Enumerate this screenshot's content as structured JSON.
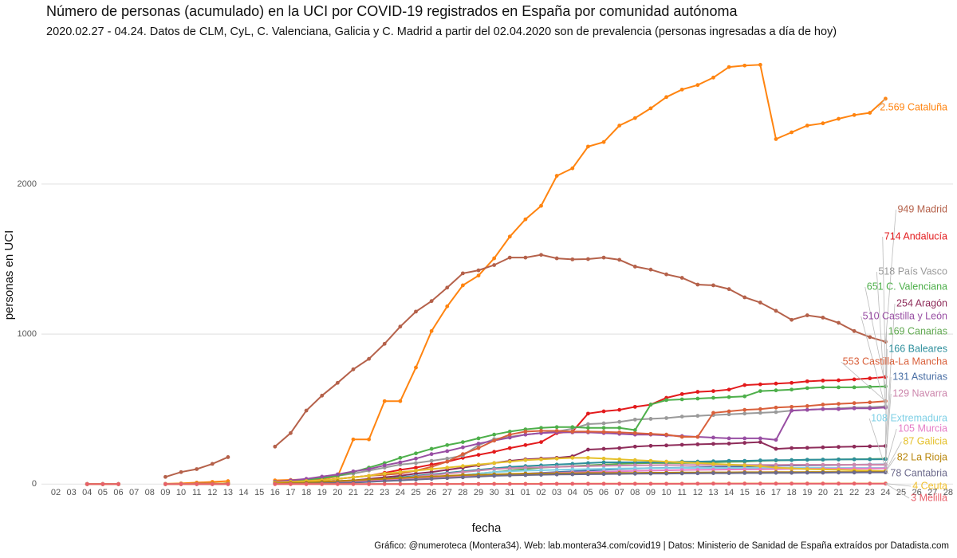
{
  "chart_data": {
    "type": "line",
    "title": "Número de personas (acumulado) en la UCI por COVID-19 registrados en España por comunidad autónoma",
    "subtitle": "2020.02.27 - 04.24. Datos de CLM, CyL, C. Valenciana, Galicia y C. Madrid a partir del 02.04.2020 son de prevalencia (personas ingresadas a día de hoy)",
    "x_label": "fecha",
    "y_label": "personas en UCI",
    "caption": "Gráfico: @numeroteca (Montera34). Web: lab.montera34.com/covid19 | Datos: Ministerio de Sanidad de España extraídos por Datadista.com",
    "categories": [
      "02",
      "03",
      "04",
      "05",
      "06",
      "07",
      "08",
      "09",
      "10",
      "11",
      "12",
      "13",
      "14",
      "15",
      "16",
      "17",
      "18",
      "19",
      "20",
      "21",
      "22",
      "23",
      "24",
      "25",
      "26",
      "27",
      "28",
      "29",
      "30",
      "31",
      "01",
      "02",
      "03",
      "04",
      "05",
      "06",
      "07",
      "08",
      "09",
      "10",
      "11",
      "12",
      "13",
      "14",
      "15",
      "16",
      "17",
      "18",
      "19",
      "20",
      "21",
      "22",
      "23",
      "24",
      "25",
      "26",
      "27",
      "28"
    ],
    "ylim": [
      -25,
      2855
    ],
    "yticks": [
      0,
      1000,
      2000
    ],
    "grid": true,
    "series": [
      {
        "name": "2.569 Cataluña",
        "color": "#ff8410",
        "values": [
          null,
          null,
          0,
          0,
          0,
          null,
          null,
          2,
          5,
          10,
          15,
          20,
          null,
          null,
          25,
          28,
          30,
          35,
          50,
          298,
          298,
          553,
          553,
          777,
          1020,
          1185,
          1325,
          1390,
          1505,
          1650,
          1765,
          1855,
          2055,
          2105,
          2250,
          2280,
          2390,
          2440,
          2505,
          2580,
          2630,
          2660,
          2710,
          2780,
          2790,
          2795,
          2300,
          2345,
          2390,
          2405,
          2435,
          2460,
          2475,
          2569,
          null,
          null,
          null,
          null
        ]
      },
      {
        "name": "949 Madrid",
        "color": "#b5614a",
        "values": [
          null,
          null,
          0,
          0,
          0,
          null,
          null,
          48,
          80,
          100,
          135,
          180,
          null,
          null,
          250,
          340,
          490,
          590,
          675,
          765,
          835,
          935,
          1050,
          1150,
          1220,
          1310,
          1405,
          1425,
          1460,
          1510,
          1510,
          1528,
          1505,
          1498,
          1500,
          1510,
          1495,
          1450,
          1430,
          1398,
          1375,
          1330,
          1325,
          1300,
          1245,
          1210,
          1155,
          1095,
          1125,
          1110,
          1075,
          1020,
          980,
          949,
          null,
          null,
          null,
          null
        ]
      },
      {
        "name": "714 Andalucía",
        "color": "#e31a1c",
        "values": [
          null,
          null,
          0,
          0,
          0,
          null,
          null,
          0,
          1,
          2,
          3,
          5,
          null,
          null,
          10,
          15,
          20,
          25,
          35,
          45,
          55,
          75,
          95,
          110,
          130,
          150,
          175,
          195,
          215,
          240,
          260,
          280,
          340,
          350,
          470,
          485,
          495,
          515,
          530,
          575,
          600,
          615,
          620,
          630,
          660,
          665,
          670,
          675,
          685,
          690,
          692,
          698,
          705,
          714,
          null,
          null,
          null,
          null
        ]
      },
      {
        "name": "518 País Vasco",
        "color": "#9a9a9a",
        "values": [
          null,
          null,
          0,
          0,
          0,
          null,
          null,
          0,
          1,
          2,
          3,
          5,
          null,
          null,
          15,
          20,
          30,
          40,
          55,
          70,
          90,
          110,
          130,
          140,
          155,
          170,
          190,
          260,
          300,
          315,
          330,
          340,
          350,
          370,
          400,
          405,
          415,
          430,
          435,
          440,
          450,
          455,
          460,
          465,
          470,
          475,
          480,
          490,
          495,
          500,
          505,
          510,
          512,
          518,
          null,
          null,
          null,
          null
        ]
      },
      {
        "name": "651 C. Valenciana",
        "color": "#4daf4a",
        "values": [
          null,
          null,
          0,
          0,
          0,
          null,
          null,
          0,
          1,
          2,
          3,
          5,
          null,
          null,
          15,
          20,
          30,
          40,
          55,
          80,
          110,
          140,
          175,
          205,
          235,
          260,
          280,
          305,
          330,
          350,
          365,
          375,
          380,
          380,
          375,
          375,
          375,
          360,
          530,
          560,
          565,
          570,
          575,
          580,
          585,
          620,
          625,
          630,
          640,
          645,
          645,
          645,
          648,
          651,
          null,
          null,
          null,
          null
        ]
      },
      {
        "name": "254 Aragón",
        "color": "#8e2c5a",
        "values": [
          null,
          null,
          0,
          0,
          0,
          null,
          null,
          0,
          0,
          1,
          1,
          2,
          null,
          null,
          5,
          8,
          10,
          15,
          20,
          25,
          35,
          45,
          55,
          70,
          80,
          95,
          110,
          125,
          140,
          155,
          165,
          170,
          175,
          185,
          230,
          235,
          240,
          250,
          255,
          258,
          262,
          265,
          268,
          270,
          275,
          280,
          235,
          240,
          242,
          245,
          248,
          250,
          252,
          254,
          null,
          null,
          null,
          null
        ]
      },
      {
        "name": "510 Castilla y León",
        "color": "#984ea3",
        "values": [
          null,
          null,
          0,
          0,
          0,
          null,
          null,
          0,
          1,
          2,
          3,
          5,
          null,
          null,
          15,
          25,
          35,
          50,
          65,
          85,
          100,
          125,
          145,
          170,
          200,
          220,
          245,
          270,
          290,
          310,
          330,
          340,
          345,
          345,
          345,
          340,
          335,
          330,
          330,
          325,
          320,
          315,
          310,
          305,
          305,
          305,
          295,
          490,
          495,
          500,
          500,
          505,
          505,
          510,
          null,
          null,
          null,
          null
        ]
      },
      {
        "name": "169 Canarias",
        "color": "#5fa84f",
        "values": [
          null,
          null,
          0,
          0,
          0,
          null,
          null,
          0,
          0,
          0,
          1,
          2,
          null,
          null,
          3,
          5,
          8,
          10,
          15,
          20,
          25,
          30,
          35,
          40,
          45,
          50,
          60,
          70,
          80,
          90,
          100,
          110,
          115,
          120,
          125,
          130,
          135,
          138,
          140,
          140,
          140,
          142,
          145,
          148,
          150,
          155,
          158,
          160,
          162,
          163,
          165,
          166,
          167,
          169,
          null,
          null,
          null,
          null
        ]
      },
      {
        "name": "166 Baleares",
        "color": "#2e8f9c",
        "values": [
          null,
          null,
          0,
          0,
          0,
          null,
          null,
          0,
          0,
          0,
          1,
          2,
          null,
          null,
          3,
          5,
          8,
          10,
          15,
          20,
          25,
          35,
          45,
          55,
          65,
          75,
          85,
          95,
          105,
          115,
          120,
          125,
          130,
          135,
          140,
          145,
          145,
          145,
          145,
          145,
          150,
          150,
          152,
          155,
          155,
          158,
          160,
          160,
          162,
          163,
          164,
          165,
          165,
          166,
          null,
          null,
          null,
          null
        ]
      },
      {
        "name": "553 Castilla-La Mancha",
        "color": "#d9603b",
        "values": [
          null,
          null,
          0,
          0,
          0,
          null,
          null,
          0,
          0,
          1,
          2,
          5,
          null,
          null,
          10,
          15,
          20,
          25,
          35,
          45,
          55,
          62,
          70,
          90,
          115,
          150,
          200,
          240,
          290,
          330,
          350,
          355,
          355,
          350,
          350,
          348,
          345,
          340,
          335,
          330,
          315,
          315,
          475,
          485,
          495,
          500,
          510,
          515,
          520,
          530,
          535,
          540,
          545,
          553,
          null,
          null,
          null,
          null
        ]
      },
      {
        "name": "131 Asturias",
        "color": "#4a6fa5",
        "values": [
          null,
          null,
          0,
          0,
          0,
          null,
          null,
          0,
          0,
          0,
          0,
          1,
          null,
          null,
          2,
          3,
          5,
          8,
          10,
          15,
          20,
          25,
          30,
          35,
          40,
          45,
          50,
          55,
          60,
          65,
          70,
          75,
          80,
          85,
          90,
          95,
          100,
          103,
          106,
          108,
          110,
          112,
          114,
          116,
          118,
          120,
          122,
          124,
          125,
          126,
          128,
          129,
          130,
          131,
          null,
          null,
          null,
          null
        ]
      },
      {
        "name": "129 Navarra",
        "color": "#cc86ac",
        "values": [
          null,
          null,
          0,
          0,
          0,
          null,
          null,
          0,
          0,
          0,
          1,
          2,
          null,
          null,
          3,
          5,
          8,
          10,
          15,
          20,
          25,
          30,
          40,
          50,
          60,
          70,
          80,
          90,
          100,
          105,
          110,
          112,
          115,
          118,
          120,
          122,
          124,
          125,
          126,
          127,
          127,
          128,
          128,
          128,
          128,
          128,
          128,
          129,
          129,
          129,
          129,
          129,
          129,
          129,
          null,
          null,
          null,
          null
        ]
      },
      {
        "name": "108 Extremadura",
        "color": "#7fd0e6",
        "values": [
          null,
          null,
          0,
          0,
          0,
          null,
          null,
          0,
          0,
          0,
          0,
          0,
          null,
          null,
          1,
          2,
          3,
          5,
          8,
          10,
          15,
          20,
          25,
          30,
          40,
          50,
          60,
          70,
          80,
          85,
          90,
          92,
          95,
          98,
          100,
          102,
          104,
          105,
          106,
          107,
          108,
          108,
          108,
          108,
          108,
          108,
          108,
          108,
          108,
          108,
          108,
          108,
          108,
          108,
          null,
          null,
          null,
          null
        ]
      },
      {
        "name": "105 Murcia",
        "color": "#e57cc6",
        "values": [
          null,
          null,
          0,
          0,
          0,
          null,
          null,
          0,
          0,
          0,
          0,
          1,
          null,
          null,
          2,
          3,
          5,
          8,
          10,
          15,
          20,
          25,
          30,
          35,
          40,
          45,
          50,
          55,
          60,
          65,
          70,
          72,
          75,
          78,
          80,
          82,
          85,
          88,
          90,
          92,
          94,
          95,
          96,
          97,
          98,
          99,
          100,
          101,
          102,
          103,
          103,
          104,
          104,
          105,
          null,
          null,
          null,
          null
        ]
      },
      {
        "name": "87 Galicia",
        "color": "#e5c02a",
        "values": [
          null,
          null,
          0,
          0,
          0,
          null,
          null,
          0,
          0,
          1,
          2,
          5,
          null,
          null,
          10,
          15,
          20,
          25,
          35,
          45,
          55,
          70,
          80,
          90,
          100,
          110,
          120,
          130,
          140,
          150,
          160,
          165,
          170,
          175,
          175,
          170,
          165,
          160,
          155,
          150,
          145,
          140,
          135,
          130,
          125,
          120,
          110,
          105,
          100,
          98,
          95,
          92,
          90,
          87,
          null,
          null,
          null,
          null
        ]
      },
      {
        "name": "82 La Rioja",
        "color": "#b8860b",
        "values": [
          null,
          null,
          0,
          0,
          0,
          null,
          null,
          0,
          0,
          1,
          2,
          3,
          null,
          null,
          5,
          8,
          10,
          15,
          20,
          25,
          30,
          35,
          40,
          45,
          50,
          55,
          60,
          62,
          65,
          68,
          70,
          70,
          72,
          72,
          74,
          74,
          75,
          75,
          76,
          76,
          77,
          77,
          78,
          78,
          79,
          79,
          80,
          80,
          80,
          81,
          81,
          81,
          82,
          82,
          null,
          null,
          null,
          null
        ]
      },
      {
        "name": "78 Cantabria",
        "color": "#6c6a8c",
        "values": [
          null,
          null,
          0,
          0,
          0,
          null,
          null,
          0,
          0,
          0,
          0,
          0,
          null,
          null,
          1,
          2,
          3,
          5,
          8,
          10,
          15,
          20,
          25,
          30,
          35,
          40,
          45,
          50,
          55,
          58,
          60,
          62,
          64,
          65,
          66,
          67,
          68,
          69,
          70,
          70,
          71,
          72,
          73,
          73,
          74,
          74,
          75,
          75,
          76,
          76,
          77,
          77,
          78,
          78,
          null,
          null,
          null,
          null
        ]
      },
      {
        "name": "4 Ceuta",
        "color": "#f0c030",
        "values": [
          null,
          null,
          0,
          0,
          0,
          null,
          null,
          0,
          0,
          0,
          0,
          0,
          null,
          null,
          0,
          0,
          0,
          0,
          0,
          0,
          0,
          1,
          1,
          1,
          1,
          1,
          1,
          1,
          2,
          2,
          2,
          2,
          2,
          2,
          3,
          3,
          3,
          3,
          3,
          3,
          3,
          3,
          4,
          4,
          4,
          4,
          4,
          4,
          4,
          4,
          4,
          4,
          4,
          4,
          null,
          null,
          null,
          null
        ]
      },
      {
        "name": "3 Melilla",
        "color": "#e8606a",
        "values": [
          null,
          null,
          0,
          0,
          0,
          null,
          null,
          0,
          0,
          0,
          0,
          0,
          null,
          null,
          0,
          0,
          0,
          0,
          0,
          0,
          0,
          0,
          0,
          1,
          1,
          1,
          1,
          1,
          1,
          1,
          1,
          1,
          2,
          2,
          2,
          2,
          2,
          2,
          2,
          2,
          2,
          3,
          3,
          3,
          3,
          3,
          3,
          3,
          3,
          3,
          3,
          3,
          3,
          3,
          null,
          null,
          null,
          null
        ]
      }
    ]
  }
}
